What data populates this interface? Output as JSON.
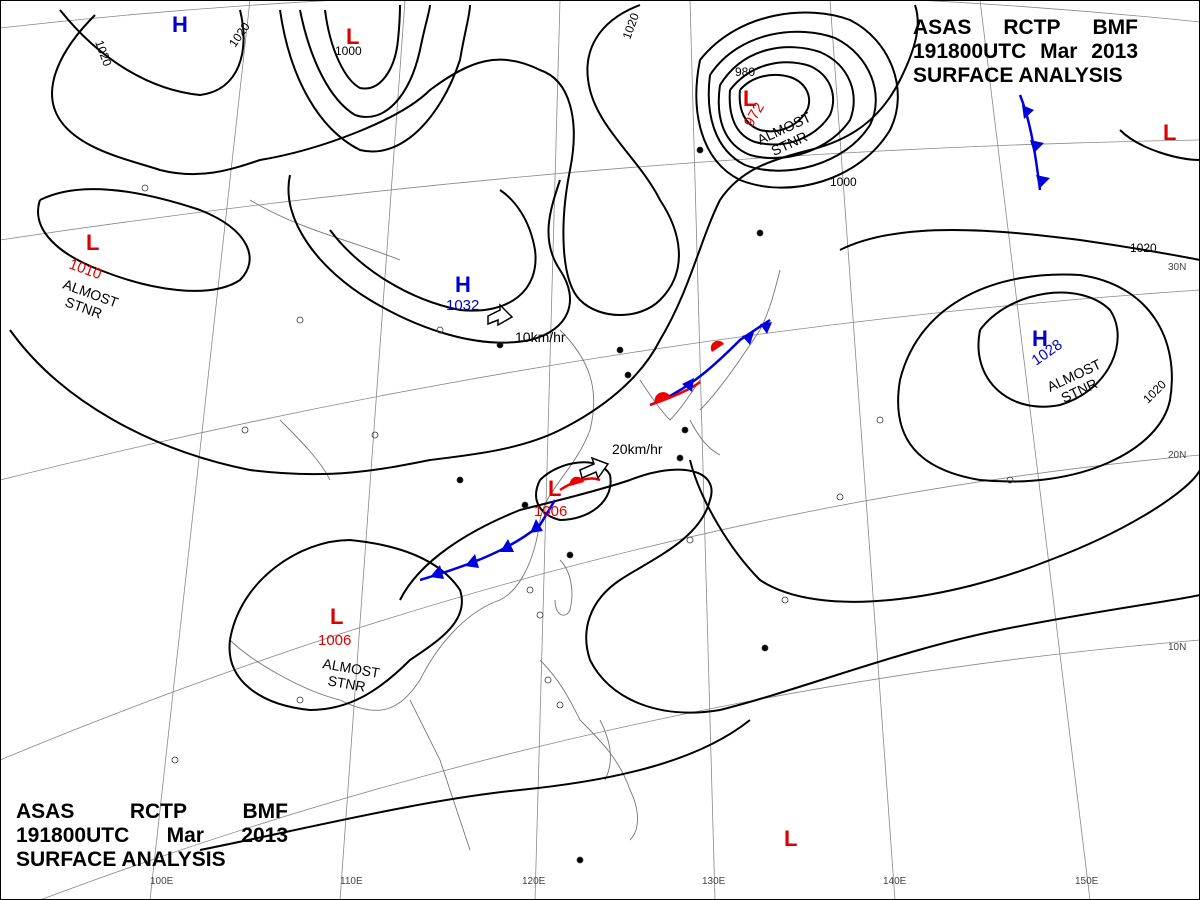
{
  "header": {
    "line1": [
      "ASAS",
      "RCTP",
      "BMF"
    ],
    "line2": [
      "191800UTC",
      "Mar",
      "2013"
    ],
    "line3": "SURFACE ANALYSIS"
  },
  "footer": {
    "line1": [
      "ASAS",
      "RCTP",
      "BMF"
    ],
    "line2": [
      "191800UTC",
      "Mar",
      "2013"
    ],
    "line3": "SURFACE ANALYSIS"
  },
  "pressure_centers": [
    {
      "type": "H",
      "value": "",
      "color": "#0000cc",
      "note": ""
    },
    {
      "type": "L",
      "value": "",
      "color": "#dd0000",
      "note": ""
    },
    {
      "type": "L",
      "value": "1010",
      "color": "#dd0000",
      "note": "ALMOST STNR"
    },
    {
      "type": "H",
      "value": "1032",
      "color": "#0000cc",
      "note": ""
    },
    {
      "type": "L",
      "value": "972",
      "color": "#dd0000",
      "note": "ALMOST STNR"
    },
    {
      "type": "L",
      "value": "",
      "color": "#dd0000",
      "note": ""
    },
    {
      "type": "H",
      "value": "1028",
      "color": "#0000cc",
      "note": "ALMOST STNR"
    },
    {
      "type": "L",
      "value": "1006",
      "color": "#dd0000",
      "note": "ALMOST STNR"
    },
    {
      "type": "L",
      "value": "1006",
      "color": "#dd0000",
      "note": ""
    },
    {
      "type": "L",
      "value": "",
      "color": "#dd0000",
      "note": ""
    }
  ],
  "isobar_labels": [
    "1020",
    "1000",
    "1020",
    "1020",
    "980",
    "1000",
    "1020",
    "1020"
  ],
  "movement_arrows": [
    "10km/hr",
    "20km/hr"
  ],
  "longitude_labels": [
    "100E",
    "110E",
    "120E",
    "130E",
    "140E",
    "150E"
  ],
  "latitude_labels": [
    "30N",
    "20N",
    "10N"
  ],
  "colors": {
    "high": "#0000cc",
    "low": "#dd0000",
    "cold_front": "#0000dd",
    "warm_front": "#ee0000",
    "isobar": "#000000",
    "coast": "#666666",
    "grid": "#888888"
  }
}
